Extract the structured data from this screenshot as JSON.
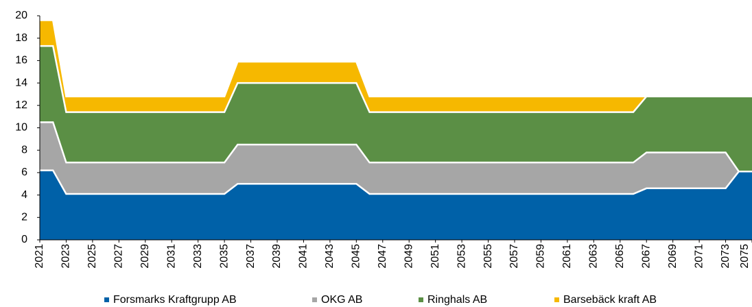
{
  "chart_data": {
    "type": "stacked_area",
    "x": [
      2021,
      2022,
      2023,
      2024,
      2025,
      2026,
      2027,
      2028,
      2029,
      2030,
      2031,
      2032,
      2033,
      2034,
      2035,
      2036,
      2037,
      2038,
      2039,
      2040,
      2041,
      2042,
      2043,
      2044,
      2045,
      2046,
      2047,
      2048,
      2049,
      2050,
      2051,
      2052,
      2053,
      2054,
      2055,
      2056,
      2057,
      2058,
      2059,
      2060,
      2061,
      2062,
      2063,
      2064,
      2065,
      2066,
      2067,
      2068,
      2069,
      2070,
      2071,
      2072,
      2073,
      2074,
      2075
    ],
    "series": [
      {
        "name": "Forsmarks Kraftgrupp AB",
        "color": "#0061a8",
        "values": [
          6.2,
          6.2,
          4.1,
          4.1,
          4.1,
          4.1,
          4.1,
          4.1,
          4.1,
          4.1,
          4.1,
          4.1,
          4.1,
          4.1,
          4.1,
          5.0,
          5.0,
          5.0,
          5.0,
          5.0,
          5.0,
          5.0,
          5.0,
          5.0,
          5.0,
          4.1,
          4.1,
          4.1,
          4.1,
          4.1,
          4.1,
          4.1,
          4.1,
          4.1,
          4.1,
          4.1,
          4.1,
          4.1,
          4.1,
          4.1,
          4.1,
          4.1,
          4.1,
          4.1,
          4.1,
          4.1,
          4.6,
          4.6,
          4.6,
          4.6,
          4.6,
          4.6,
          4.6,
          6.1,
          6.1
        ]
      },
      {
        "name": "OKG AB",
        "color": "#a6a6a6",
        "values": [
          4.3,
          4.3,
          2.8,
          2.8,
          2.8,
          2.8,
          2.8,
          2.8,
          2.8,
          2.8,
          2.8,
          2.8,
          2.8,
          2.8,
          2.8,
          3.5,
          3.5,
          3.5,
          3.5,
          3.5,
          3.5,
          3.5,
          3.5,
          3.5,
          3.5,
          2.8,
          2.8,
          2.8,
          2.8,
          2.8,
          2.8,
          2.8,
          2.8,
          2.8,
          2.8,
          2.8,
          2.8,
          2.8,
          2.8,
          2.8,
          2.8,
          2.8,
          2.8,
          2.8,
          2.8,
          2.8,
          3.2,
          3.2,
          3.2,
          3.2,
          3.2,
          3.2,
          3.2,
          0,
          0
        ]
      },
      {
        "name": "Ringhals AB",
        "color": "#5b8f45",
        "values": [
          6.8,
          6.8,
          4.5,
          4.5,
          4.5,
          4.5,
          4.5,
          4.5,
          4.5,
          4.5,
          4.5,
          4.5,
          4.5,
          4.5,
          4.5,
          5.5,
          5.5,
          5.5,
          5.5,
          5.5,
          5.5,
          5.5,
          5.5,
          5.5,
          5.5,
          4.5,
          4.5,
          4.5,
          4.5,
          4.5,
          4.5,
          4.5,
          4.5,
          4.5,
          4.5,
          4.5,
          4.5,
          4.5,
          4.5,
          4.5,
          4.5,
          4.5,
          4.5,
          4.5,
          4.5,
          4.5,
          5.0,
          5.0,
          5.0,
          5.0,
          5.0,
          5.0,
          5.0,
          6.7,
          6.7
        ]
      },
      {
        "name": "Barsebäck kraft AB",
        "color": "#f6b800",
        "values": [
          2.3,
          2.3,
          1.4,
          1.4,
          1.4,
          1.4,
          1.4,
          1.4,
          1.4,
          1.4,
          1.4,
          1.4,
          1.4,
          1.4,
          1.4,
          1.9,
          1.9,
          1.9,
          1.9,
          1.9,
          1.9,
          1.9,
          1.9,
          1.9,
          1.9,
          1.4,
          1.4,
          1.4,
          1.4,
          1.4,
          1.4,
          1.4,
          1.4,
          1.4,
          1.4,
          1.4,
          1.4,
          1.4,
          1.4,
          1.4,
          1.4,
          1.4,
          1.4,
          1.4,
          1.4,
          1.4,
          0,
          0,
          0,
          0,
          0,
          0,
          0,
          0,
          0
        ]
      }
    ],
    "xlim": [
      2021,
      2075
    ],
    "xticks": [
      2021,
      2023,
      2025,
      2027,
      2029,
      2031,
      2033,
      2035,
      2037,
      2039,
      2041,
      2043,
      2045,
      2047,
      2049,
      2051,
      2053,
      2055,
      2057,
      2059,
      2061,
      2063,
      2065,
      2067,
      2069,
      2071,
      2073,
      2075
    ],
    "ylim": [
      0,
      20
    ],
    "yticks": [
      0,
      2,
      4,
      6,
      8,
      10,
      12,
      14,
      16,
      18,
      20
    ],
    "legend": "bottom"
  }
}
